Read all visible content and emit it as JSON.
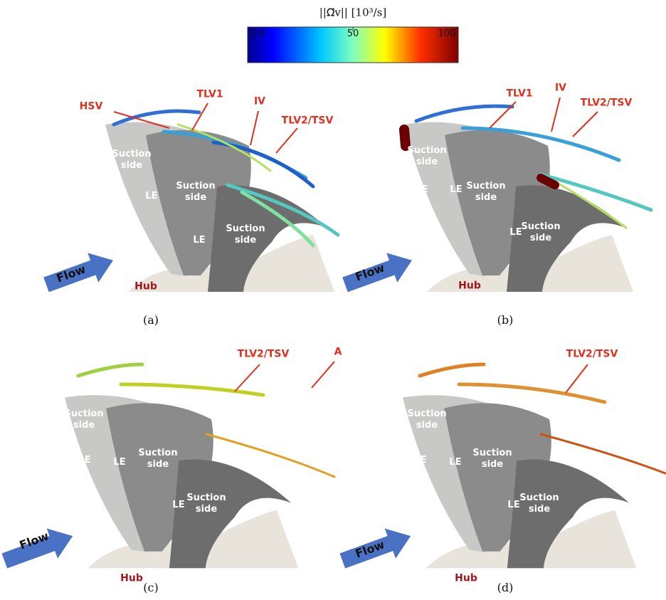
{
  "colorbar": {
    "title": "||Ω⃗v|| [10³/s]",
    "ticks": [
      {
        "value": 0,
        "label": "0.0"
      },
      50,
      100
    ]
  },
  "panels": [
    {
      "caption": "(a)",
      "annotations": [
        "HSV",
        "TLV1",
        "IV",
        "TLV2/TSV"
      ],
      "blade_labels": [
        "Suction side",
        "LE",
        "LE",
        "Suction side",
        "LE",
        "Suction side"
      ],
      "flow": "Flow",
      "hub": "Hub"
    },
    {
      "caption": "(b)",
      "annotations": [
        "TLV1",
        "IV",
        "TLV2/TSV"
      ],
      "blade_labels": [
        "Suction side",
        "LE",
        "LE",
        "Suction side",
        "LE",
        "Suction side"
      ],
      "flow": "Flow",
      "hub": "Hub"
    },
    {
      "caption": "(c)",
      "annotations": [
        "A",
        "TLV2/TSV"
      ],
      "blade_labels": [
        "Suction side",
        "LE",
        "LE",
        "Suction side",
        "LE",
        "Suction side"
      ],
      "flow": "Flow",
      "hub": "Hub"
    },
    {
      "caption": "(d)",
      "annotations": [
        "TLV2/TSV"
      ],
      "blade_labels": [
        "Suction side",
        "LE",
        "LE",
        "Suction side",
        "LE",
        "Suction side"
      ],
      "flow": "Flow",
      "hub": "Hub"
    }
  ]
}
